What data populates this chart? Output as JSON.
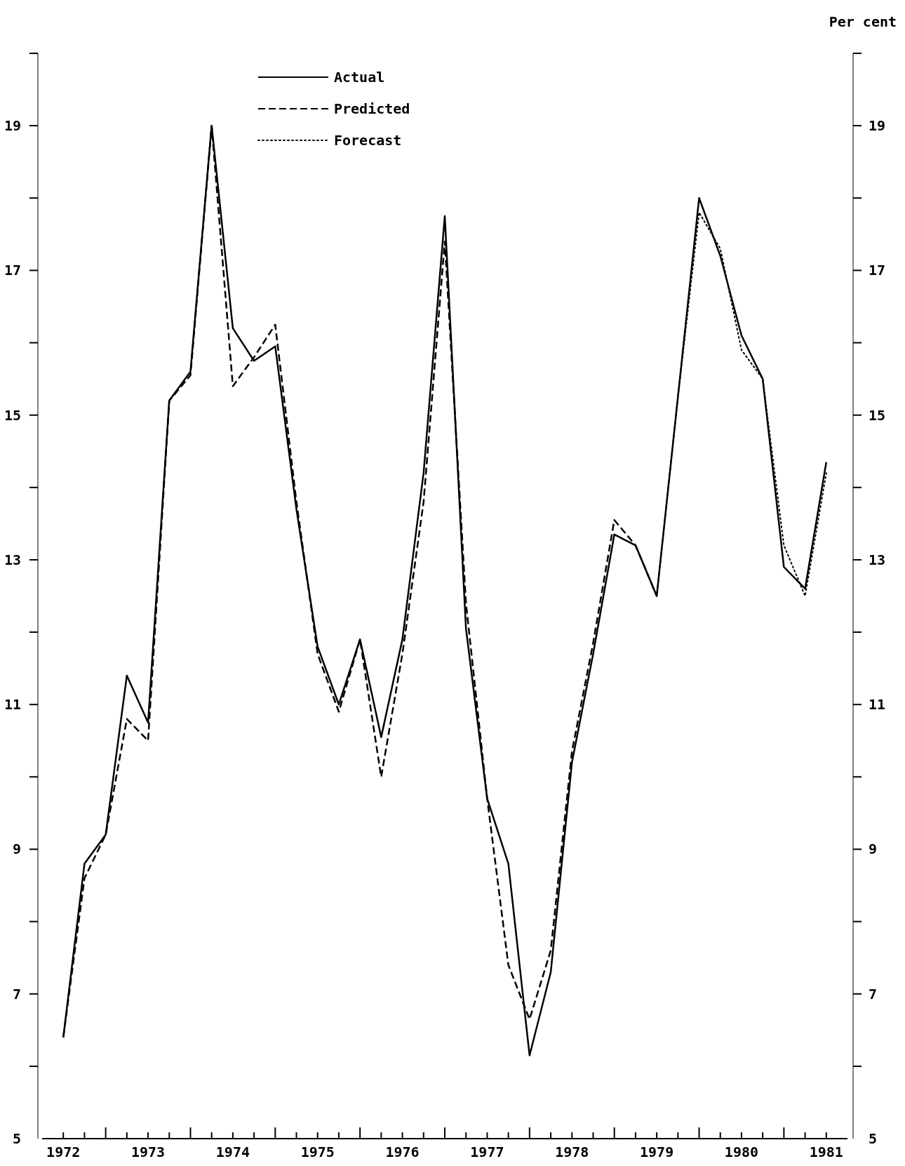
{
  "chart_data": {
    "type": "line",
    "y2label": "Per cent",
    "x": [
      1972.5,
      1972.75,
      1973,
      1973.25,
      1973.5,
      1973.75,
      1974,
      1974.25,
      1974.5,
      1974.75,
      1975,
      1975.25,
      1975.5,
      1975.75,
      1976,
      1976.25,
      1976.5,
      1976.75,
      1977,
      1977.25,
      1977.5,
      1977.75,
      1978,
      1978.25,
      1978.5,
      1978.75,
      1979,
      1979.25,
      1979.5,
      1979.75,
      1980,
      1980.25,
      1980.5,
      1980.75,
      1981,
      1981.25,
      1981.5
    ],
    "series": [
      {
        "name": "Actual",
        "color": "#000000",
        "line_style": "solid",
        "values": [
          6.4,
          8.8,
          9.2,
          11.4,
          10.75,
          15.2,
          15.6,
          19.0,
          16.2,
          15.75,
          15.95,
          13.7,
          11.8,
          11.0,
          11.9,
          10.55,
          11.9,
          14.2,
          17.75,
          12.05,
          9.7,
          8.8,
          6.15,
          7.3,
          10.2,
          11.7,
          13.35,
          13.2,
          12.5,
          15.25,
          18.0,
          17.2,
          16.1,
          15.5,
          12.9,
          12.6,
          14.35
        ]
      },
      {
        "name": "Predicted",
        "color": "#000000",
        "line_style": "dashed",
        "values": [
          6.4,
          8.6,
          9.2,
          10.8,
          10.5,
          15.2,
          15.55,
          19.0,
          15.4,
          15.8,
          16.25,
          13.8,
          11.7,
          10.9,
          11.9,
          10.0,
          11.7,
          13.8,
          17.4,
          12.4,
          9.7,
          7.4,
          6.65,
          7.6,
          10.35,
          11.85,
          13.55,
          13.2,
          12.5,
          null,
          null,
          null,
          null,
          null,
          null,
          null,
          null
        ]
      },
      {
        "name": "Forecast",
        "color": "#000000",
        "line_style": "dotted",
        "values": [
          null,
          null,
          null,
          null,
          null,
          null,
          null,
          null,
          null,
          null,
          null,
          null,
          null,
          null,
          null,
          null,
          null,
          null,
          null,
          null,
          null,
          null,
          null,
          null,
          null,
          null,
          null,
          null,
          12.5,
          15.25,
          17.8,
          17.3,
          15.9,
          15.5,
          13.2,
          12.5,
          14.2
        ]
      }
    ],
    "xlim": [
      1972.25,
      1981.75
    ],
    "xticks": [
      {
        "value": 1972.5,
        "label": "1972"
      },
      {
        "value": 1972.75,
        "label": null
      },
      {
        "value": 1973,
        "label": null
      },
      {
        "value": 1973.25,
        "label": null
      },
      {
        "value": 1973.5,
        "label": "1973"
      },
      {
        "value": 1973.75,
        "label": null
      },
      {
        "value": 1974,
        "label": null
      },
      {
        "value": 1974.25,
        "label": null
      },
      {
        "value": 1974.5,
        "label": "1974"
      },
      {
        "value": 1974.75,
        "label": null
      },
      {
        "value": 1975,
        "label": null
      },
      {
        "value": 1975.25,
        "label": null
      },
      {
        "value": 1975.5,
        "label": "1975"
      },
      {
        "value": 1975.75,
        "label": null
      },
      {
        "value": 1976,
        "label": null
      },
      {
        "value": 1976.25,
        "label": null
      },
      {
        "value": 1976.5,
        "label": "1976"
      },
      {
        "value": 1976.75,
        "label": null
      },
      {
        "value": 1977,
        "label": null
      },
      {
        "value": 1977.25,
        "label": null
      },
      {
        "value": 1977.5,
        "label": "1977"
      },
      {
        "value": 1977.75,
        "label": null
      },
      {
        "value": 1978,
        "label": null
      },
      {
        "value": 1978.25,
        "label": null
      },
      {
        "value": 1978.5,
        "label": "1978"
      },
      {
        "value": 1978.75,
        "label": null
      },
      {
        "value": 1979,
        "label": null
      },
      {
        "value": 1979.25,
        "label": null
      },
      {
        "value": 1979.5,
        "label": "1979"
      },
      {
        "value": 1979.75,
        "label": null
      },
      {
        "value": 1980,
        "label": null
      },
      {
        "value": 1980.25,
        "label": null
      },
      {
        "value": 1980.5,
        "label": "1980"
      },
      {
        "value": 1980.75,
        "label": null
      },
      {
        "value": 1981,
        "label": null
      },
      {
        "value": 1981.25,
        "label": null
      },
      {
        "value": 1981.5,
        "label": "1981"
      }
    ],
    "ylim": [
      5,
      20
    ],
    "yticks": [
      5,
      {
        "value": 6,
        "label": null
      },
      7,
      {
        "value": 8,
        "label": null
      },
      9,
      {
        "value": 10,
        "label": null
      },
      11,
      {
        "value": 12,
        "label": null
      },
      13,
      {
        "value": 14,
        "label": null
      },
      15,
      {
        "value": 16,
        "label": null
      },
      17,
      {
        "value": 18,
        "label": null
      },
      19,
      {
        "value": 20,
        "label": null
      }
    ],
    "y2lim": [
      5,
      20
    ],
    "y2ticks": [
      5,
      {
        "value": 6,
        "label": null
      },
      7,
      {
        "value": 8,
        "label": null
      },
      9,
      {
        "value": 10,
        "label": null
      },
      11,
      {
        "value": 12,
        "label": null
      },
      13,
      {
        "value": 14,
        "label": null
      },
      15,
      {
        "value": 16,
        "label": null
      },
      17,
      {
        "value": 18,
        "label": null
      },
      19,
      {
        "value": 20,
        "label": null
      }
    ],
    "grid": false,
    "legend": "top",
    "marker": "none"
  }
}
